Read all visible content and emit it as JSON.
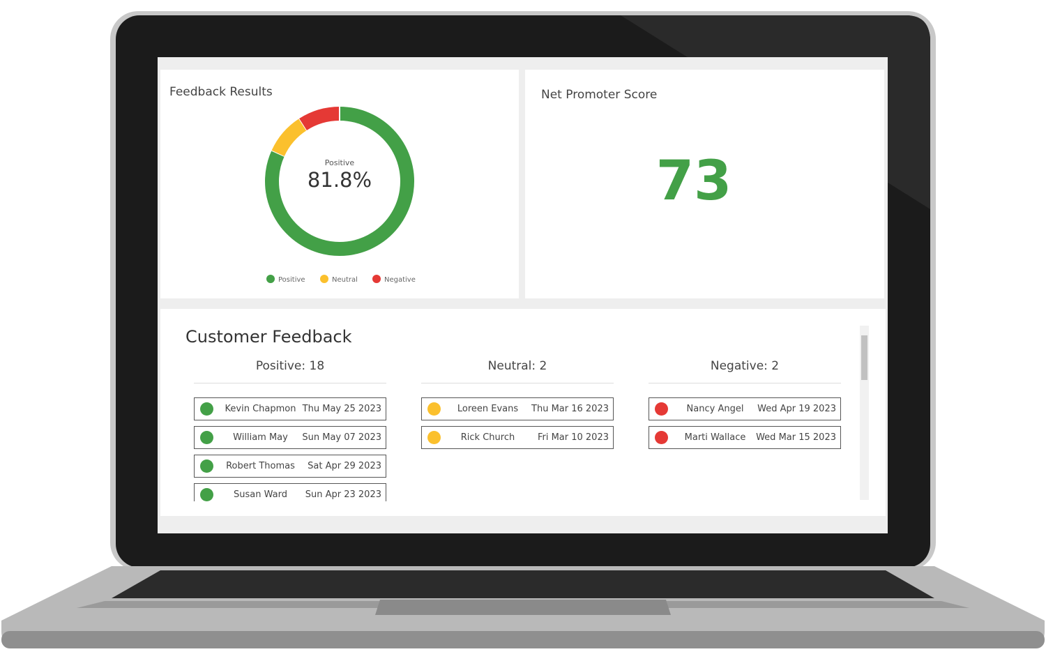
{
  "feedback_results": {
    "title": "Feedback Results",
    "chart_data": {
      "type": "pie",
      "categories": [
        "Positive",
        "Neutral",
        "Negative"
      ],
      "values": [
        81.8,
        9.1,
        9.1
      ],
      "value_labels": [
        "81.8%",
        null,
        null
      ],
      "colors": [
        "#43a047",
        "#fbc02d",
        "#e53935"
      ],
      "center_label": "Positive",
      "donut": true
    }
  },
  "net_promoter": {
    "title": "Net Promoter Score",
    "score": "73"
  },
  "customer_feedback": {
    "title": "Customer Feedback",
    "columns": [
      {
        "heading": "Positive: 18",
        "color": "#43a047",
        "rows": [
          [
            "Kevin Chapmon",
            "Thu May 25 2023"
          ],
          [
            "William May",
            "Sun May 07 2023"
          ],
          [
            "Robert Thomas",
            "Sat Apr 29 2023"
          ],
          [
            "Susan Ward",
            "Sun Apr 23 2023"
          ]
        ]
      },
      {
        "heading": "Neutral: 2",
        "color": "#fbc02d",
        "rows": [
          [
            "Loreen Evans",
            "Thu Mar 16 2023"
          ],
          [
            "Rick Church",
            "Fri Mar 10 2023"
          ]
        ]
      },
      {
        "heading": "Negative: 2",
        "color": "#e53935",
        "rows": [
          [
            "Nancy Angel",
            "Wed Apr 19 2023"
          ],
          [
            "Marti Wallace",
            "Wed Mar 15 2023"
          ]
        ]
      }
    ]
  }
}
